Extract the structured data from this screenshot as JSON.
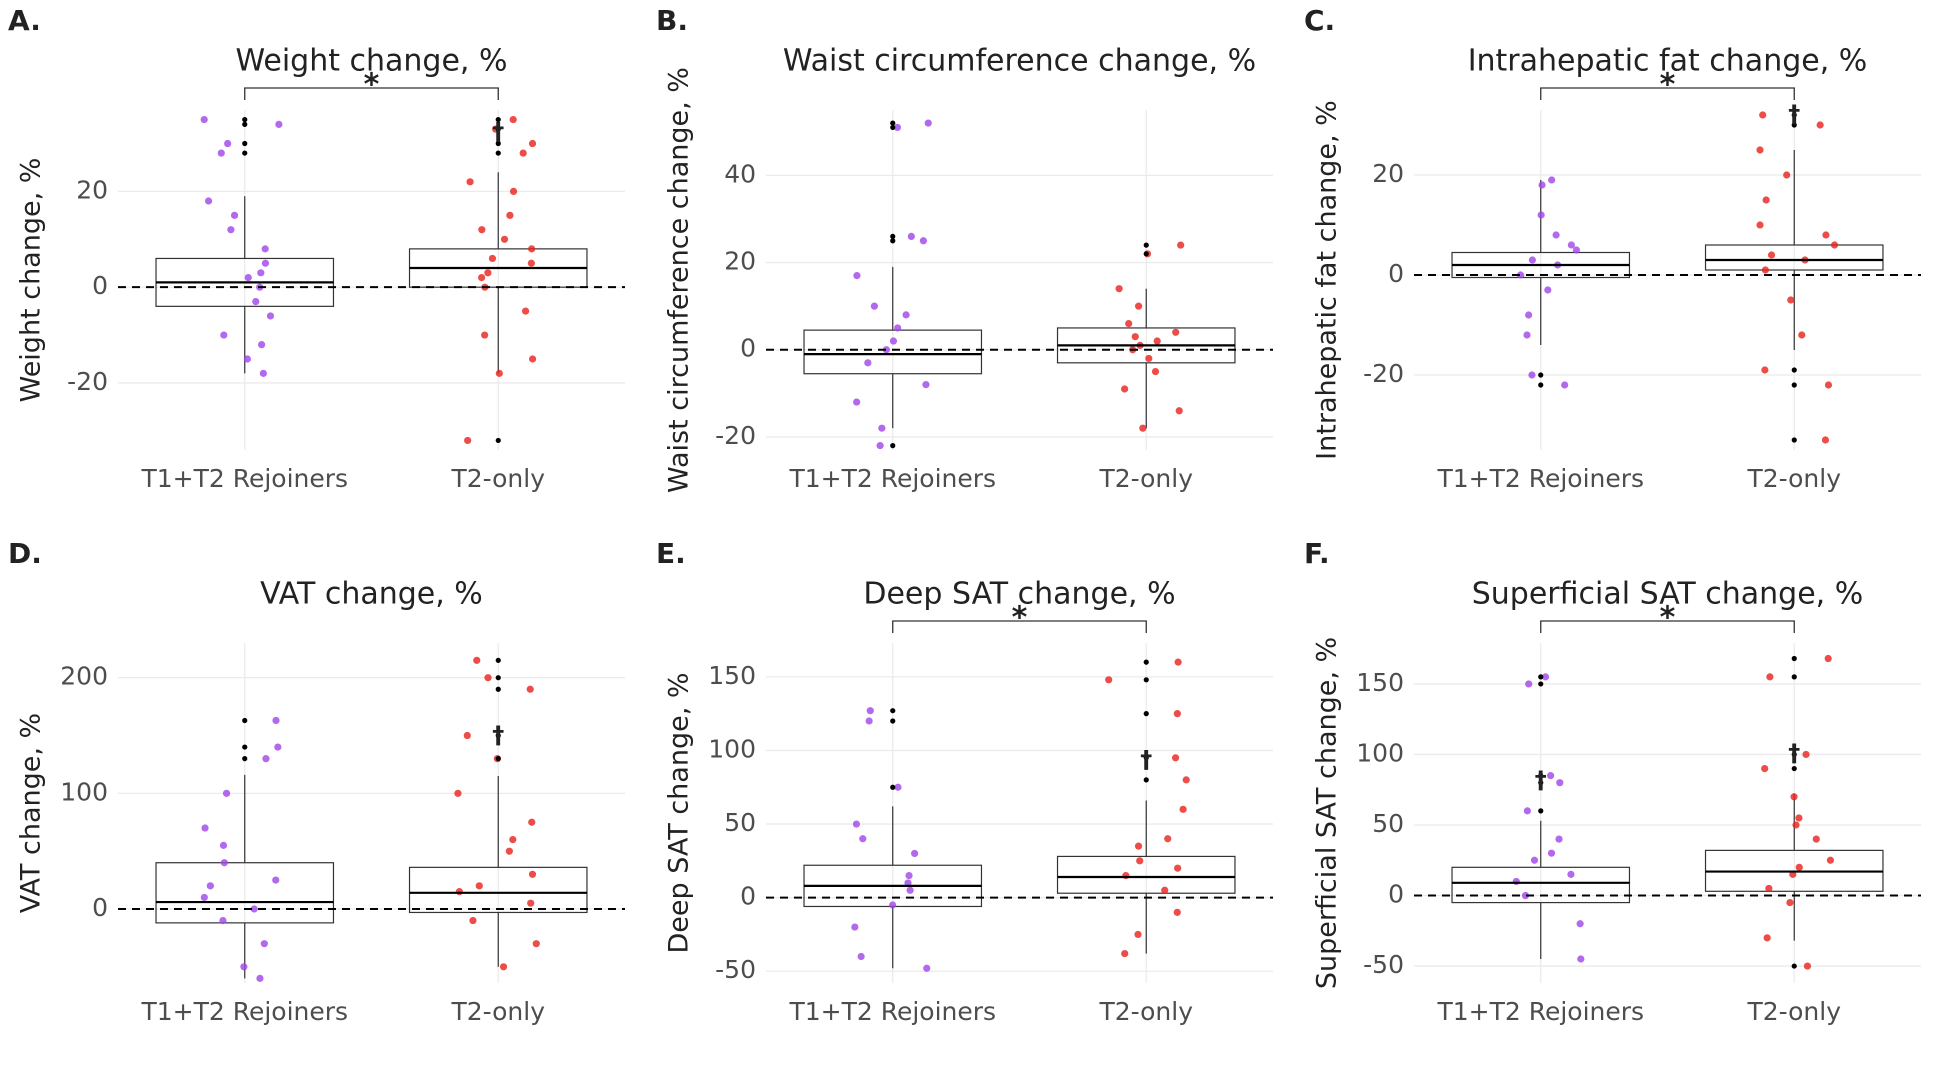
{
  "chart_data": [
    {
      "type": "box",
      "panel": "A.",
      "title": "Weight change, %",
      "y_label": "Weight change, %",
      "categories": [
        "T1+T2 Rejoiners",
        "T2-only"
      ],
      "ylim": [
        -34,
        37
      ],
      "yticks": [
        -20,
        0,
        20
      ],
      "reference_line": 0,
      "grid": true,
      "boxes": [
        {
          "color": "#a044e8",
          "stats": [
            -18,
            -4,
            1,
            6,
            19
          ],
          "points": [
            35,
            34,
            30,
            28,
            -18,
            -15,
            12,
            8,
            5,
            2,
            0,
            -3,
            -6,
            -10,
            15,
            -12,
            3,
            18
          ]
        },
        {
          "color": "#e8201c",
          "stats": [
            -18,
            0,
            4,
            8,
            24
          ],
          "points": [
            35,
            33,
            30,
            28,
            -32,
            -18,
            -15,
            20,
            15,
            10,
            8,
            5,
            3,
            0,
            -5,
            -10,
            22,
            12,
            6,
            2
          ]
        }
      ],
      "annotations": [
        {
          "text": "*",
          "between": [
            0,
            1
          ]
        },
        {
          "text": "†",
          "group": 1
        }
      ]
    },
    {
      "type": "box",
      "panel": "B.",
      "title": "Waist circumference change, %",
      "y_label": "Waist circumference change, %",
      "categories": [
        "T1+T2 Rejoiners",
        "T2-only"
      ],
      "ylim": [
        -23,
        55
      ],
      "yticks": [
        -20,
        0,
        20,
        40
      ],
      "reference_line": 0,
      "grid": true,
      "boxes": [
        {
          "color": "#a044e8",
          "stats": [
            -18,
            -5.5,
            -1,
            4.5,
            19
          ],
          "points": [
            52,
            51,
            26,
            25,
            17,
            10,
            5,
            2,
            0,
            -3,
            -8,
            -12,
            -18,
            -22,
            8
          ]
        },
        {
          "color": "#e8201c",
          "stats": [
            -18,
            -3,
            1,
            5,
            14
          ],
          "points": [
            24,
            22,
            14,
            10,
            6,
            3,
            1,
            0,
            -2,
            -5,
            -9,
            -14,
            -18,
            4,
            2
          ]
        }
      ],
      "annotations": []
    },
    {
      "type": "box",
      "panel": "C.",
      "title": "Intrahepatic fat change, %",
      "y_label": "Intrahepatic fat change, %",
      "categories": [
        "T1+T2 Rejoiners",
        "T2-only"
      ],
      "ylim": [
        -35,
        33
      ],
      "yticks": [
        -20,
        0,
        20
      ],
      "reference_line": 0,
      "grid": true,
      "boxes": [
        {
          "color": "#a044e8",
          "stats": [
            -14,
            -0.5,
            2,
            4.5,
            19
          ],
          "points": [
            19,
            18,
            12,
            8,
            5,
            3,
            2,
            0,
            -3,
            -8,
            -12,
            -20,
            -22,
            6
          ]
        },
        {
          "color": "#e8201c",
          "stats": [
            -15,
            1,
            3,
            6,
            25
          ],
          "points": [
            32,
            30,
            25,
            20,
            15,
            10,
            6,
            4,
            3,
            1,
            -5,
            -12,
            -19,
            -22,
            -33,
            8
          ]
        }
      ],
      "annotations": [
        {
          "text": "*",
          "between": [
            0,
            1
          ]
        },
        {
          "text": "†",
          "group": 1
        }
      ]
    },
    {
      "type": "box",
      "panel": "D.",
      "title": "VAT change, %",
      "y_label": "VAT change, %",
      "categories": [
        "T1+T2 Rejoiners",
        "T2-only"
      ],
      "ylim": [
        -64,
        230
      ],
      "yticks": [
        0,
        100,
        200
      ],
      "reference_line": 0,
      "grid": true,
      "boxes": [
        {
          "color": "#a044e8",
          "stats": [
            -60,
            -12,
            6,
            40,
            116
          ],
          "points": [
            163,
            140,
            130,
            100,
            70,
            40,
            20,
            10,
            0,
            -10,
            -30,
            -50,
            -60,
            55,
            25
          ]
        },
        {
          "color": "#e8201c",
          "stats": [
            -50,
            -3,
            14,
            36,
            115
          ],
          "points": [
            215,
            200,
            190,
            150,
            130,
            100,
            75,
            50,
            30,
            15,
            5,
            -10,
            -30,
            -50,
            60,
            20
          ]
        }
      ],
      "annotations": [
        {
          "text": "†",
          "group": 1
        }
      ]
    },
    {
      "type": "box",
      "panel": "E.",
      "title": "Deep SAT change, %",
      "y_label": "Deep SAT change, %",
      "categories": [
        "T1+T2 Rejoiners",
        "T2-only"
      ],
      "ylim": [
        -58,
        173
      ],
      "yticks": [
        -50,
        0,
        50,
        100,
        150
      ],
      "reference_line": 0,
      "grid": true,
      "boxes": [
        {
          "color": "#a044e8",
          "stats": [
            -48,
            -6,
            8,
            22,
            62
          ],
          "points": [
            127,
            120,
            75,
            50,
            30,
            15,
            5,
            -5,
            -20,
            -40,
            -48,
            40,
            10
          ]
        },
        {
          "color": "#e8201c",
          "stats": [
            -38,
            3,
            14,
            28,
            66
          ],
          "points": [
            160,
            148,
            125,
            95,
            80,
            60,
            40,
            25,
            15,
            5,
            -10,
            -25,
            -38,
            35,
            20
          ]
        }
      ],
      "annotations": [
        {
          "text": "*",
          "between": [
            0,
            1
          ]
        },
        {
          "text": "†",
          "group": 1
        }
      ]
    },
    {
      "type": "box",
      "panel": "F.",
      "title": "Superficial SAT change, %",
      "y_label": "Superficial SAT change, %",
      "categories": [
        "T1+T2 Rejoiners",
        "T2-only"
      ],
      "ylim": [
        -62,
        179
      ],
      "yticks": [
        -50,
        0,
        50,
        100,
        150
      ],
      "reference_line": 0,
      "grid": true,
      "boxes": [
        {
          "color": "#a044e8",
          "stats": [
            -45,
            -5,
            9,
            20,
            53
          ],
          "points": [
            155,
            150,
            85,
            80,
            60,
            40,
            25,
            10,
            0,
            -20,
            -45,
            30,
            15
          ]
        },
        {
          "color": "#e8201c",
          "stats": [
            -32,
            3,
            17,
            32,
            72
          ],
          "points": [
            168,
            155,
            100,
            90,
            70,
            55,
            40,
            25,
            15,
            5,
            -5,
            -30,
            -50,
            50,
            20
          ]
        }
      ],
      "annotations": [
        {
          "text": "*",
          "between": [
            0,
            1
          ]
        },
        {
          "text": "†",
          "group": 0
        },
        {
          "text": "†",
          "group": 1
        }
      ]
    }
  ]
}
